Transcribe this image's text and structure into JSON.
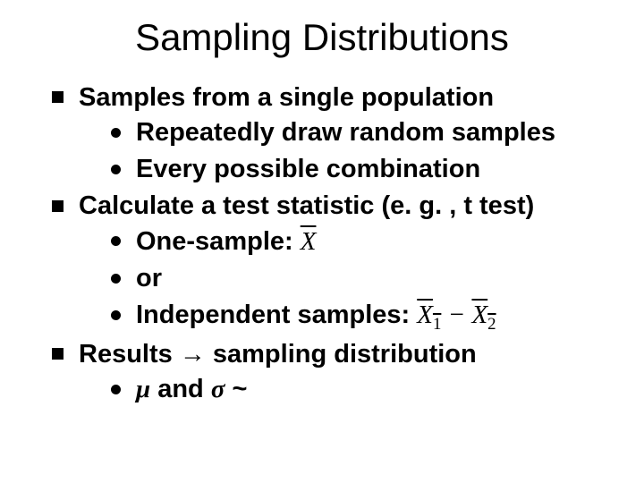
{
  "title": "Sampling Distributions",
  "b1": {
    "text": "Samples from a single population",
    "s1": "Repeatedly draw random samples",
    "s2": "Every possible combination"
  },
  "b2": {
    "text": "Calculate a test statistic (e. g. , t test)",
    "s1": "One-sample:  ",
    "s2": "or",
    "s3": "Independent samples:  "
  },
  "b3": {
    "text_a": "Results ",
    "arrow": "→",
    "text_b": " sampling distribution",
    "s1_mu": "μ",
    "s1_and": " and ",
    "s1_sigma": "σ",
    "s1_tail": "   ~"
  },
  "math": {
    "Xbar": "X",
    "X1bar": "X",
    "one": "1",
    "minus": " − ",
    "X2bar": "X",
    "two": "2"
  }
}
